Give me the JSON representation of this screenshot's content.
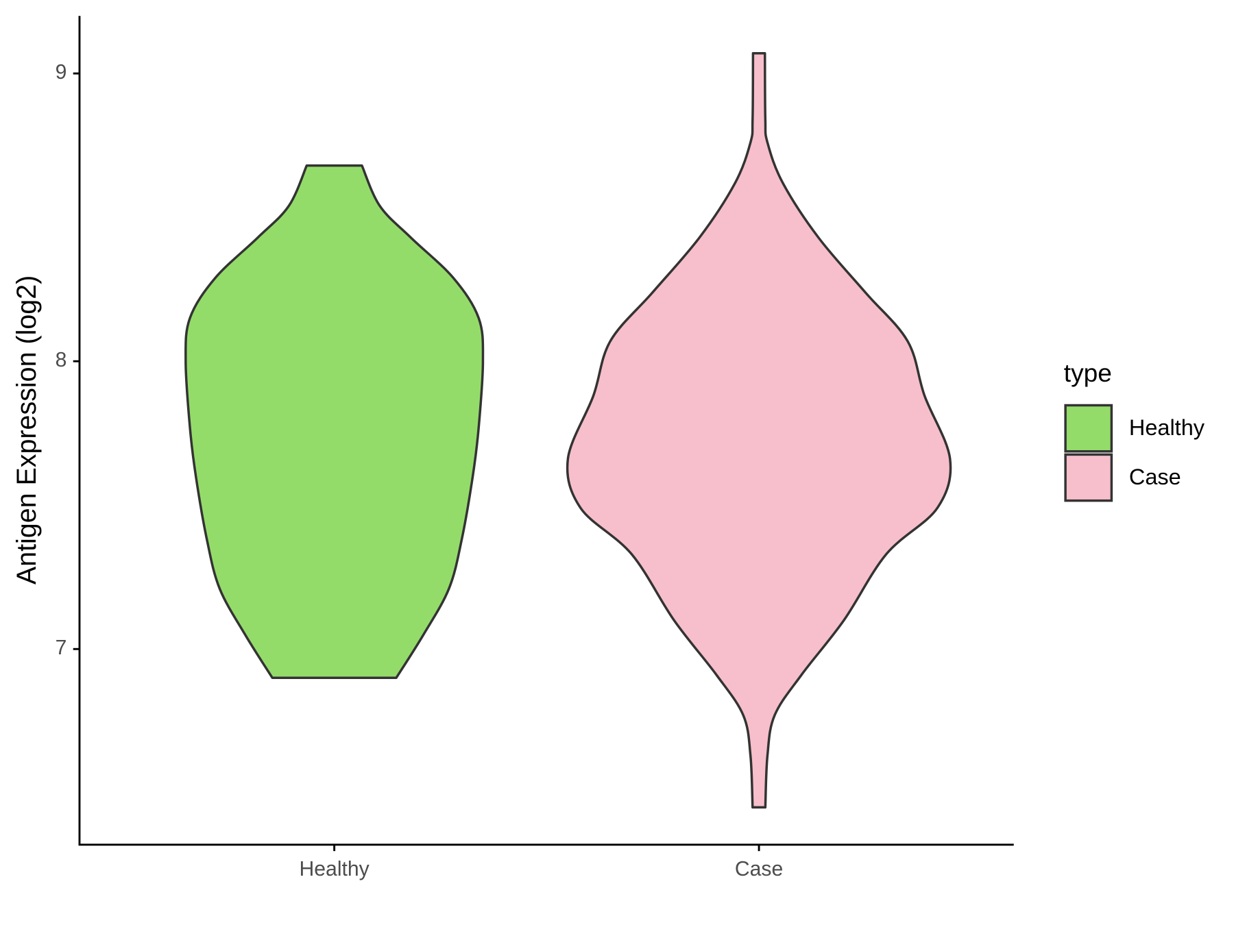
{
  "chart_data": {
    "type": "violin",
    "y_label": "Antigen Expression (log2)",
    "categories": [
      "Healthy",
      "Case"
    ],
    "legend_title": "type",
    "legend": "right",
    "ylim": [
      6.32,
      9.2
    ],
    "yticks": [
      7,
      8,
      9
    ],
    "series": [
      {
        "name": "Healthy",
        "color": "#94dc6a",
        "y": [
          8.68,
          8.54,
          8.43,
          8.29,
          8.15,
          8.0,
          7.77,
          7.6,
          7.38,
          7.21,
          7.05,
          6.9
        ],
        "width": [
          0.065,
          0.107,
          0.18,
          0.28,
          0.34,
          0.35,
          0.34,
          0.326,
          0.3,
          0.27,
          0.21,
          0.146
        ]
      },
      {
        "name": "Case",
        "color": "#f7bfcb",
        "y": [
          9.07,
          8.84,
          8.76,
          8.62,
          8.43,
          8.24,
          8.07,
          7.88,
          7.66,
          7.49,
          7.33,
          7.1,
          6.91,
          6.77,
          6.63,
          6.45
        ],
        "width": [
          0.014,
          0.015,
          0.02,
          0.056,
          0.14,
          0.25,
          0.35,
          0.39,
          0.45,
          0.42,
          0.3,
          0.2,
          0.1,
          0.037,
          0.02,
          0.015
        ]
      }
    ]
  }
}
